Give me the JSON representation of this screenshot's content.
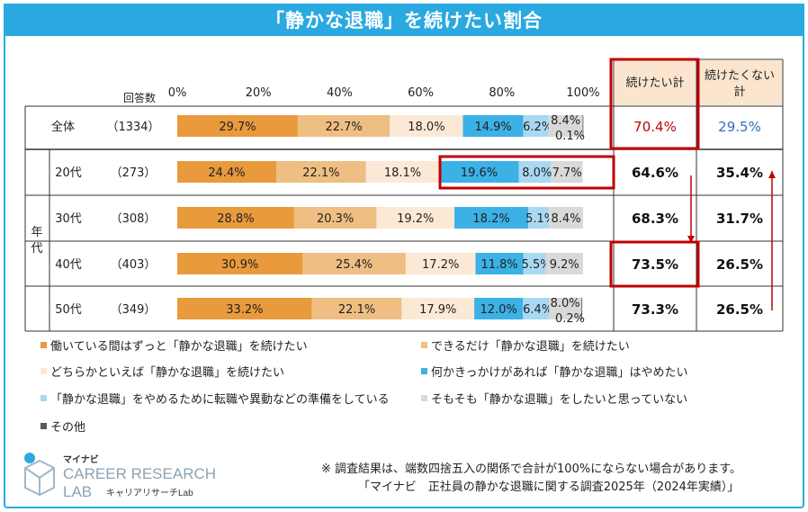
{
  "title": "「静かな退職」を続けたい割合",
  "header": {
    "count_label": "回答数",
    "col_continue": "続けたい計",
    "col_not_continue": "続けたくない計"
  },
  "age_group_label": "年代",
  "colors": {
    "title_bg": "#29a9e0",
    "highlight": "#c00000",
    "continue_total": "#c00000",
    "not_continue_total": "#2f6fc0"
  },
  "chart_data": {
    "type": "bar",
    "orientation": "horizontal",
    "stacked": true,
    "xlim": [
      0,
      100
    ],
    "x_ticks": [
      "0%",
      "20%",
      "40%",
      "60%",
      "80%",
      "100%"
    ],
    "categories": [
      "全体",
      "20代",
      "30代",
      "40代",
      "50代"
    ],
    "counts": [
      "（1334）",
      "（273）",
      "（308）",
      "（403）",
      "（349）"
    ],
    "series": [
      {
        "name": "働いている間はずっと「静かな退職」を続けたい",
        "color": "#e89a3c",
        "values": [
          29.7,
          24.4,
          28.8,
          30.9,
          33.2
        ]
      },
      {
        "name": "できるだけ「静かな退職」を続けたい",
        "color": "#efbe82",
        "values": [
          22.7,
          22.1,
          20.3,
          25.4,
          22.1
        ]
      },
      {
        "name": "どちらかといえば「静かな退職」を続けたい",
        "color": "#fbe9d6",
        "values": [
          18.0,
          18.1,
          19.2,
          17.2,
          17.9
        ]
      },
      {
        "name": "何かきっかけがあれば「静かな退職」はやめたい",
        "color": "#3bb1e6",
        "values": [
          14.9,
          19.6,
          18.2,
          11.8,
          12.0
        ]
      },
      {
        "name": "「静かな退職」をやめるために転職や異動などの準備をしている",
        "color": "#a9d9f2",
        "values": [
          6.2,
          8.0,
          5.1,
          5.5,
          6.4
        ]
      },
      {
        "name": "そもそも「静かな退職」をしたいと思っていない",
        "color": "#d9d9d9",
        "values": [
          8.4,
          7.7,
          8.4,
          9.2,
          8.0
        ]
      },
      {
        "name": "その他",
        "color": "#595959",
        "values": [
          0.1,
          0.0,
          0.0,
          0.0,
          0.2
        ]
      }
    ],
    "value_labels": [
      [
        "29.7%",
        "22.7%",
        "18.0%",
        "14.9%",
        "6.2%",
        "8.4%",
        "0.1%"
      ],
      [
        "24.4%",
        "22.1%",
        "18.1%",
        "19.6%",
        "8.0%",
        "7.7%",
        ""
      ],
      [
        "28.8%",
        "20.3%",
        "19.2%",
        "18.2%",
        "5.1%",
        "8.4%",
        ""
      ],
      [
        "30.9%",
        "25.4%",
        "17.2%",
        "11.8%",
        "5.5%",
        "9.2%",
        ""
      ],
      [
        "33.2%",
        "22.1%",
        "17.9%",
        "12.0%",
        "6.4%",
        "8.0%",
        "0.2%"
      ]
    ],
    "continue_total": [
      "70.4%",
      "64.6%",
      "68.3%",
      "73.5%",
      "73.3%"
    ],
    "not_continue_total": [
      "29.5%",
      "35.4%",
      "31.7%",
      "26.5%",
      "26.5%"
    ]
  },
  "legend": [
    "働いている間はずっと「静かな退職」を続けたい",
    "できるだけ「静かな退職」を続けたい",
    "どちらかといえば「静かな退職」を続けたい",
    "何かきっかけがあれば「静かな退職」はやめたい",
    "「静かな退職」をやめるために転職や異動などの準備をしている",
    "そもそも「静かな退職」をしたいと思っていない",
    "その他"
  ],
  "notes": {
    "line1": "※ 調査結果は、端数四捨五入の関係で合計が100%にならない場合があります。",
    "line2": "「マイナビ　正社員の静かな退職に関する調査2025年（2024年実績）」"
  },
  "logo": {
    "brand": "マイナビ",
    "line1": "CAREER RESEARCH",
    "line2": "LAB",
    "sub": "キャリアリサーチLab"
  }
}
